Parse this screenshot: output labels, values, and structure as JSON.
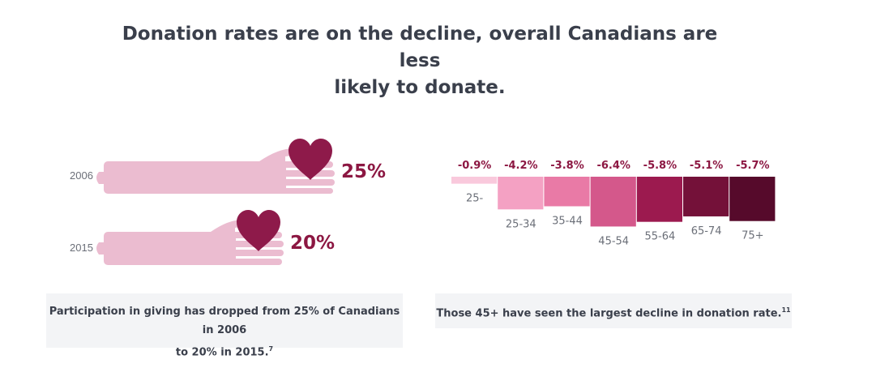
{
  "title_line1": "Donation rates are on the decline, overall Canadians are less",
  "title_line2": "likely to donate.",
  "left_panel": {
    "rows": [
      {
        "year": "2006",
        "value": 25,
        "label": "25%"
      },
      {
        "year": "2015",
        "value": 20,
        "label": "20%"
      }
    ],
    "caption_line1": "Participation in giving has dropped from 25% of Canadians in 2006",
    "caption_line2": "to 20% in 2015.",
    "caption_footnote": "7"
  },
  "right_panel": {
    "caption": "Those 45+ have seen the largest decline in donation rate.",
    "caption_footnote": "11"
  },
  "colors": {
    "hand": "#ebbcd0",
    "heart": "#8e1a4a",
    "value_text": "#8c1742",
    "bars": [
      "#f9c9dc",
      "#f4a1c3",
      "#e97aa6",
      "#d4588b",
      "#9c1a4f",
      "#741139",
      "#560a2b"
    ]
  },
  "chart_data": {
    "type": "bar",
    "categories": [
      "25-",
      "25-34",
      "35-44",
      "45-54",
      "55-64",
      "65-74",
      "75+"
    ],
    "values": [
      -0.9,
      -4.2,
      -3.8,
      -6.4,
      -5.8,
      -5.1,
      -5.7
    ],
    "value_labels": [
      "-0.9%",
      "-4.2%",
      "-3.8%",
      "-6.4%",
      "-5.8%",
      "-5.1%",
      "-5.7%"
    ],
    "ylim": [
      -6.4,
      0
    ],
    "grid": false,
    "legend": "none"
  }
}
